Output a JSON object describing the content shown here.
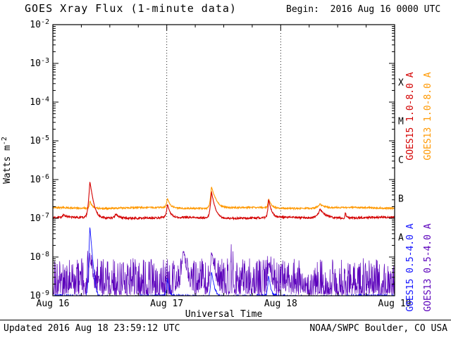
{
  "header": {
    "title": "GOES Xray Flux (1-minute data)",
    "begin": "Begin:  2016 Aug 16 0000 UTC"
  },
  "footer": {
    "updated": "Updated 2016 Aug 18 23:59:12 UTC",
    "credit": "NOAA/SWPC Boulder, CO USA"
  },
  "chart_data": {
    "type": "line",
    "title": "GOES Xray Flux (1-minute data)",
    "begin": "2016 Aug 16 0000 UTC",
    "xlabel": "Universal Time",
    "ylabel": {
      "base": "Watts m",
      "sup": "-2"
    },
    "y_scale": "log",
    "y_log_range": [
      -9,
      -2
    ],
    "x_range_days": 3,
    "x_tick_labels": [
      "Aug 16",
      "Aug 17",
      "Aug 18",
      "Aug 19"
    ],
    "grid": "dotted vertical lines at day boundaries",
    "flare_classes": [
      {
        "label": "A",
        "mid_exponent": -7.5
      },
      {
        "label": "B",
        "mid_exponent": -6.5
      },
      {
        "label": "C",
        "mid_exponent": -5.5
      },
      {
        "label": "M",
        "mid_exponent": -4.5
      },
      {
        "label": "X",
        "mid_exponent": -3.5
      }
    ],
    "right_labels": [
      {
        "text": "GOES15 1.0-8.0 A",
        "color": "#d40000",
        "col": 0,
        "row": 0
      },
      {
        "text": "GOES13 1.0-8.0 A",
        "color": "#ff9800",
        "col": 1,
        "row": 0
      },
      {
        "text": "GOES15 0.5-4.0 A",
        "color": "#1414ff",
        "col": 0,
        "row": 1
      },
      {
        "text": "GOES13 0.5-4.0 A",
        "color": "#5b00bb",
        "col": 1,
        "row": 1
      }
    ],
    "series": [
      {
        "id": "goes13-short",
        "label": "GOES13 0.5-4.0 A",
        "color": "#5b00bb",
        "width": 0.7,
        "noise_model": "comb",
        "base": 1.05e-09,
        "comb_decades": 0.95,
        "tall_prob": 0.05,
        "tall_extra": 0.5,
        "spikes": [
          {
            "t": 0.325,
            "peak": 8e-09,
            "rise": 0.006,
            "decay": 0.015
          },
          {
            "t": 1.144,
            "peak": 1.4e-08,
            "rise": 0.01,
            "decay": 0.02
          },
          {
            "t": 1.392,
            "peak": 1.1e-08,
            "rise": 0.008,
            "decay": 0.02
          },
          {
            "t": 1.893,
            "peak": 6e-09,
            "rise": 0.006,
            "decay": 0.015
          }
        ]
      },
      {
        "id": "goes15-short",
        "label": "GOES15 0.5-4.0 A",
        "color": "#1414ff",
        "width": 0.9,
        "baseline": 9.5e-10,
        "noise": 0.12,
        "phase": 1.0,
        "spikes": [
          {
            "t": 0.325,
            "peak": 6.2e-08,
            "rise": 0.005,
            "decay": 0.012
          },
          {
            "t": 1.005,
            "peak": 2e-09,
            "rise": 0.006,
            "decay": 0.015
          },
          {
            "t": 1.392,
            "peak": 3.5e-09,
            "rise": 0.006,
            "decay": 0.018
          },
          {
            "t": 1.893,
            "peak": 2.5e-09,
            "rise": 0.006,
            "decay": 0.015
          }
        ]
      },
      {
        "id": "goes13-long",
        "label": "GOES13 1.0-8.0 A",
        "color": "#ff9800",
        "width": 1.1,
        "baseline": 1.85e-07,
        "noise": 0.05,
        "phase": 2.0,
        "spikes": [
          {
            "t": 0.325,
            "peak": 1e-07,
            "rise": 0.006,
            "decay": 0.018
          },
          {
            "t": 1.005,
            "peak": 1.5e-07,
            "rise": 0.008,
            "decay": 0.02
          },
          {
            "t": 1.392,
            "peak": 4.8e-07,
            "rise": 0.008,
            "decay": 0.03
          },
          {
            "t": 1.893,
            "peak": 1.3e-07,
            "rise": 0.006,
            "decay": 0.02
          },
          {
            "t": 2.345,
            "peak": 5e-08,
            "rise": 0.02,
            "decay": 0.04
          }
        ]
      },
      {
        "id": "goes15-long",
        "label": "GOES15 1.0-8.0 A",
        "color": "#d40000",
        "width": 1.1,
        "baseline": 1.03e-07,
        "noise": 0.06,
        "phase": 0.0,
        "spikes": [
          {
            "t": 0.093,
            "peak": 2e-08,
            "rise": 0.01,
            "decay": 0.025
          },
          {
            "t": 0.325,
            "peak": 8e-07,
            "rise": 0.008,
            "decay": 0.02
          },
          {
            "t": 0.55,
            "peak": 3e-08,
            "rise": 0.01,
            "decay": 0.03
          },
          {
            "t": 1.005,
            "peak": 1.3e-07,
            "rise": 0.008,
            "decay": 0.02
          },
          {
            "t": 1.392,
            "peak": 3.9e-07,
            "rise": 0.008,
            "decay": 0.022
          },
          {
            "t": 1.893,
            "peak": 2.1e-07,
            "rise": 0.006,
            "decay": 0.02
          },
          {
            "t": 2.345,
            "peak": 7e-08,
            "rise": 0.02,
            "decay": 0.045
          },
          {
            "t": 2.567,
            "peak": 5e-08,
            "rise": 0.003,
            "decay": 0.008
          }
        ]
      }
    ]
  }
}
